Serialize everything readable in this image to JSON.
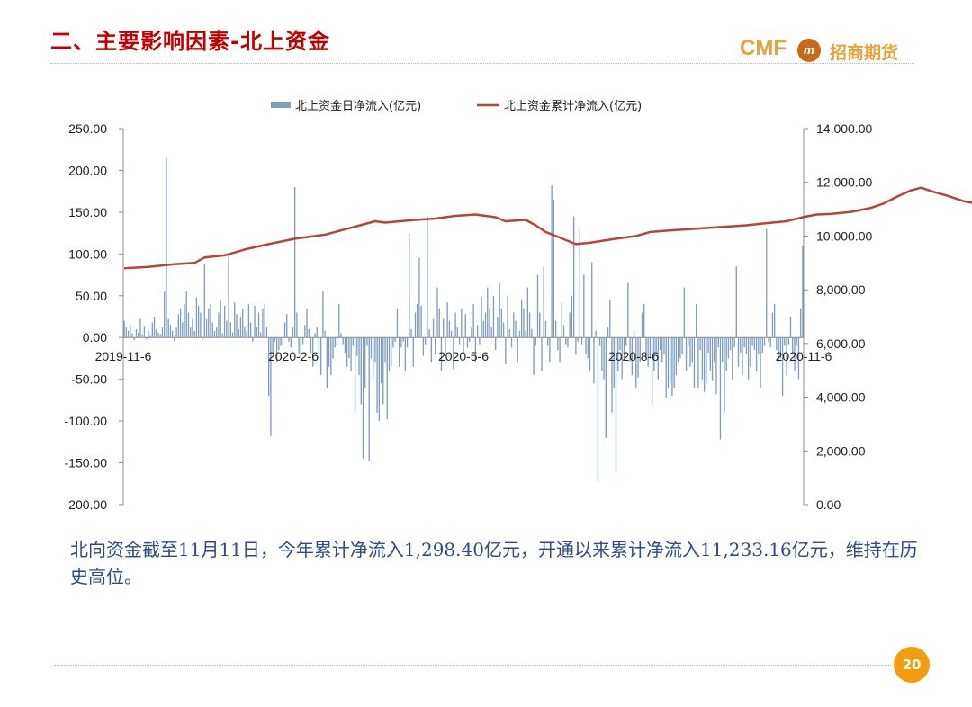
{
  "header": {
    "title": "二、主要影响因素-北上资金",
    "logo_text": "CMF",
    "logo_badge": "m",
    "logo_cn": "招商期货"
  },
  "caption": "北向资金截至11月11日，今年累计净流入1,298.40亿元，开通以来累计净流入11,233.16亿元，维持在历史高位。",
  "page_number": "20",
  "colors": {
    "bar": "#7f9dbd",
    "line": "#b5453c",
    "title": "#c00000",
    "caption": "#2f4a86",
    "badge": "#f39c12"
  },
  "chart_data": {
    "type": "bar+line",
    "legend_position": "top",
    "x_ticks": [
      "2019-11-6",
      "2020-2-6",
      "2020-5-6",
      "2020-8-6",
      "2020-11-6"
    ],
    "y_left": {
      "min": -200,
      "max": 250,
      "ticks": [
        "250.00",
        "200.00",
        "150.00",
        "100.00",
        "50.00",
        "0.00",
        "-50.00",
        "-100.00",
        "-150.00",
        "-200.00"
      ]
    },
    "y_right": {
      "min": 0,
      "max": 14000,
      "ticks": [
        "14,000.00",
        "12,000.00",
        "10,000.00",
        "8,000.00",
        "6,000.00",
        "4,000.00",
        "2,000.00",
        "0.00"
      ]
    },
    "series": [
      {
        "name": "北上资金日净流入(亿元)",
        "type": "bar",
        "axis": "left",
        "values": [
          20,
          12,
          8,
          15,
          5,
          -3,
          10,
          6,
          22,
          4,
          14,
          -2,
          8,
          3,
          18,
          25,
          10,
          6,
          4,
          12,
          55,
          215,
          22,
          15,
          8,
          -4,
          12,
          28,
          35,
          18,
          40,
          55,
          30,
          12,
          22,
          8,
          48,
          38,
          30,
          -2,
          88,
          22,
          35,
          40,
          18,
          8,
          12,
          30,
          45,
          5,
          38,
          20,
          100,
          18,
          6,
          42,
          28,
          10,
          25,
          35,
          12,
          8,
          40,
          18,
          -5,
          38,
          12,
          30,
          6,
          35,
          40,
          12,
          -70,
          -118,
          -20,
          -5,
          -30,
          -15,
          -10,
          -8,
          18,
          28,
          -5,
          -12,
          12,
          180,
          30,
          -20,
          -25,
          -8,
          15,
          35,
          10,
          -18,
          -35,
          5,
          12,
          -28,
          -45,
          55,
          8,
          -60,
          -35,
          -45,
          -25,
          -12,
          -10,
          40,
          5,
          -8,
          -18,
          -35,
          -25,
          -40,
          -10,
          -90,
          -22,
          -45,
          -80,
          -145,
          -60,
          -10,
          -148,
          -25,
          -48,
          -30,
          -90,
          -100,
          -55,
          -80,
          -30,
          -98,
          -40,
          -35,
          -12,
          -5,
          35,
          -35,
          -12,
          -5,
          -40,
          -12,
          125,
          10,
          -35,
          30,
          40,
          95,
          38,
          -22,
          -8,
          145,
          10,
          -30,
          22,
          -20,
          60,
          35,
          -40,
          22,
          -18,
          42,
          20,
          8,
          -38,
          30,
          12,
          -8,
          35,
          -18,
          28,
          -12,
          -5,
          12,
          40,
          -30,
          15,
          -8,
          48,
          20,
          30,
          60,
          35,
          12,
          50,
          -15,
          25,
          65,
          35,
          18,
          -32,
          50,
          10,
          -12,
          30,
          20,
          -30,
          8,
          45,
          35,
          8,
          60,
          30,
          10,
          -45,
          -10,
          75,
          30,
          -40,
          85,
          20,
          -10,
          -30,
          182,
          165,
          20,
          -15,
          -30,
          42,
          15,
          -8,
          -12,
          30,
          50,
          145,
          -20,
          -5,
          130,
          -8,
          75,
          -20,
          -25,
          -40,
          90,
          -55,
          8,
          -172,
          -10,
          -40,
          -50,
          -120,
          12,
          45,
          -90,
          -60,
          -162,
          -40,
          -15,
          -50,
          -25,
          -10,
          65,
          -30,
          -45,
          8,
          -60,
          -48,
          -30,
          30,
          40,
          -25,
          -35,
          -25,
          -80,
          -40,
          -18,
          -50,
          -15,
          -30,
          -20,
          -72,
          -60,
          -55,
          -70,
          -60,
          -45,
          -30,
          -25,
          -20,
          60,
          -40,
          -10,
          -35,
          -30,
          -60,
          40,
          -60,
          -15,
          -50,
          -65,
          -55,
          -18,
          -40,
          -52,
          -30,
          -68,
          -12,
          -122,
          -30,
          -90,
          -40,
          -25,
          -15,
          -50,
          -12,
          85,
          -35,
          -18,
          -45,
          -12,
          -20,
          -50,
          -35,
          -10,
          -15,
          -40,
          -20,
          -60,
          -18,
          -10,
          130,
          -5,
          -12,
          30,
          40,
          -15,
          -30,
          -25,
          -70,
          -10,
          -45,
          -8,
          25,
          -20,
          -40,
          -10,
          -50,
          35,
          110
        ]
      },
      {
        "name": "北上资金累计净流入(亿元)",
        "type": "line",
        "axis": "right",
        "points": [
          [
            0,
            8800
          ],
          [
            12,
            8850
          ],
          [
            25,
            8950
          ],
          [
            35,
            9000
          ],
          [
            40,
            9200
          ],
          [
            50,
            9280
          ],
          [
            60,
            9500
          ],
          [
            72,
            9700
          ],
          [
            85,
            9900
          ],
          [
            95,
            10000
          ],
          [
            100,
            10050
          ],
          [
            115,
            10350
          ],
          [
            125,
            10550
          ],
          [
            130,
            10500
          ],
          [
            145,
            10600
          ],
          [
            155,
            10650
          ],
          [
            165,
            10750
          ],
          [
            175,
            10800
          ],
          [
            185,
            10700
          ],
          [
            190,
            10550
          ],
          [
            200,
            10600
          ],
          [
            205,
            10400
          ],
          [
            210,
            10150
          ],
          [
            220,
            9850
          ],
          [
            225,
            9700
          ],
          [
            232,
            9750
          ],
          [
            245,
            9900
          ],
          [
            255,
            10000
          ],
          [
            262,
            10150
          ],
          [
            270,
            10200
          ],
          [
            280,
            10250
          ],
          [
            290,
            10300
          ],
          [
            300,
            10350
          ],
          [
            310,
            10400
          ],
          [
            320,
            10480
          ],
          [
            330,
            10550
          ],
          [
            338,
            10700
          ],
          [
            345,
            10800
          ],
          [
            352,
            10820
          ],
          [
            362,
            10900
          ],
          [
            372,
            11050
          ],
          [
            378,
            11200
          ],
          [
            386,
            11500
          ],
          [
            392,
            11700
          ],
          [
            397,
            11800
          ],
          [
            403,
            11650
          ],
          [
            410,
            11500
          ],
          [
            418,
            11300
          ],
          [
            425,
            11200
          ],
          [
            438,
            11180
          ],
          [
            450,
            11150
          ],
          [
            462,
            11200
          ],
          [
            475,
            11150
          ],
          [
            490,
            11200
          ],
          [
            500,
            11200
          ],
          [
            510,
            11120
          ],
          [
            520,
            11000
          ],
          [
            530,
            10950
          ],
          [
            540,
            10980
          ],
          [
            550,
            11100
          ],
          [
            560,
            10950
          ],
          [
            572,
            10900
          ],
          [
            585,
            11000
          ],
          [
            595,
            11080
          ],
          [
            605,
            11020
          ],
          [
            615,
            10980
          ],
          [
            625,
            10900
          ],
          [
            636,
            10930
          ],
          [
            645,
            10980
          ],
          [
            650,
            11050
          ]
        ]
      }
    ]
  }
}
